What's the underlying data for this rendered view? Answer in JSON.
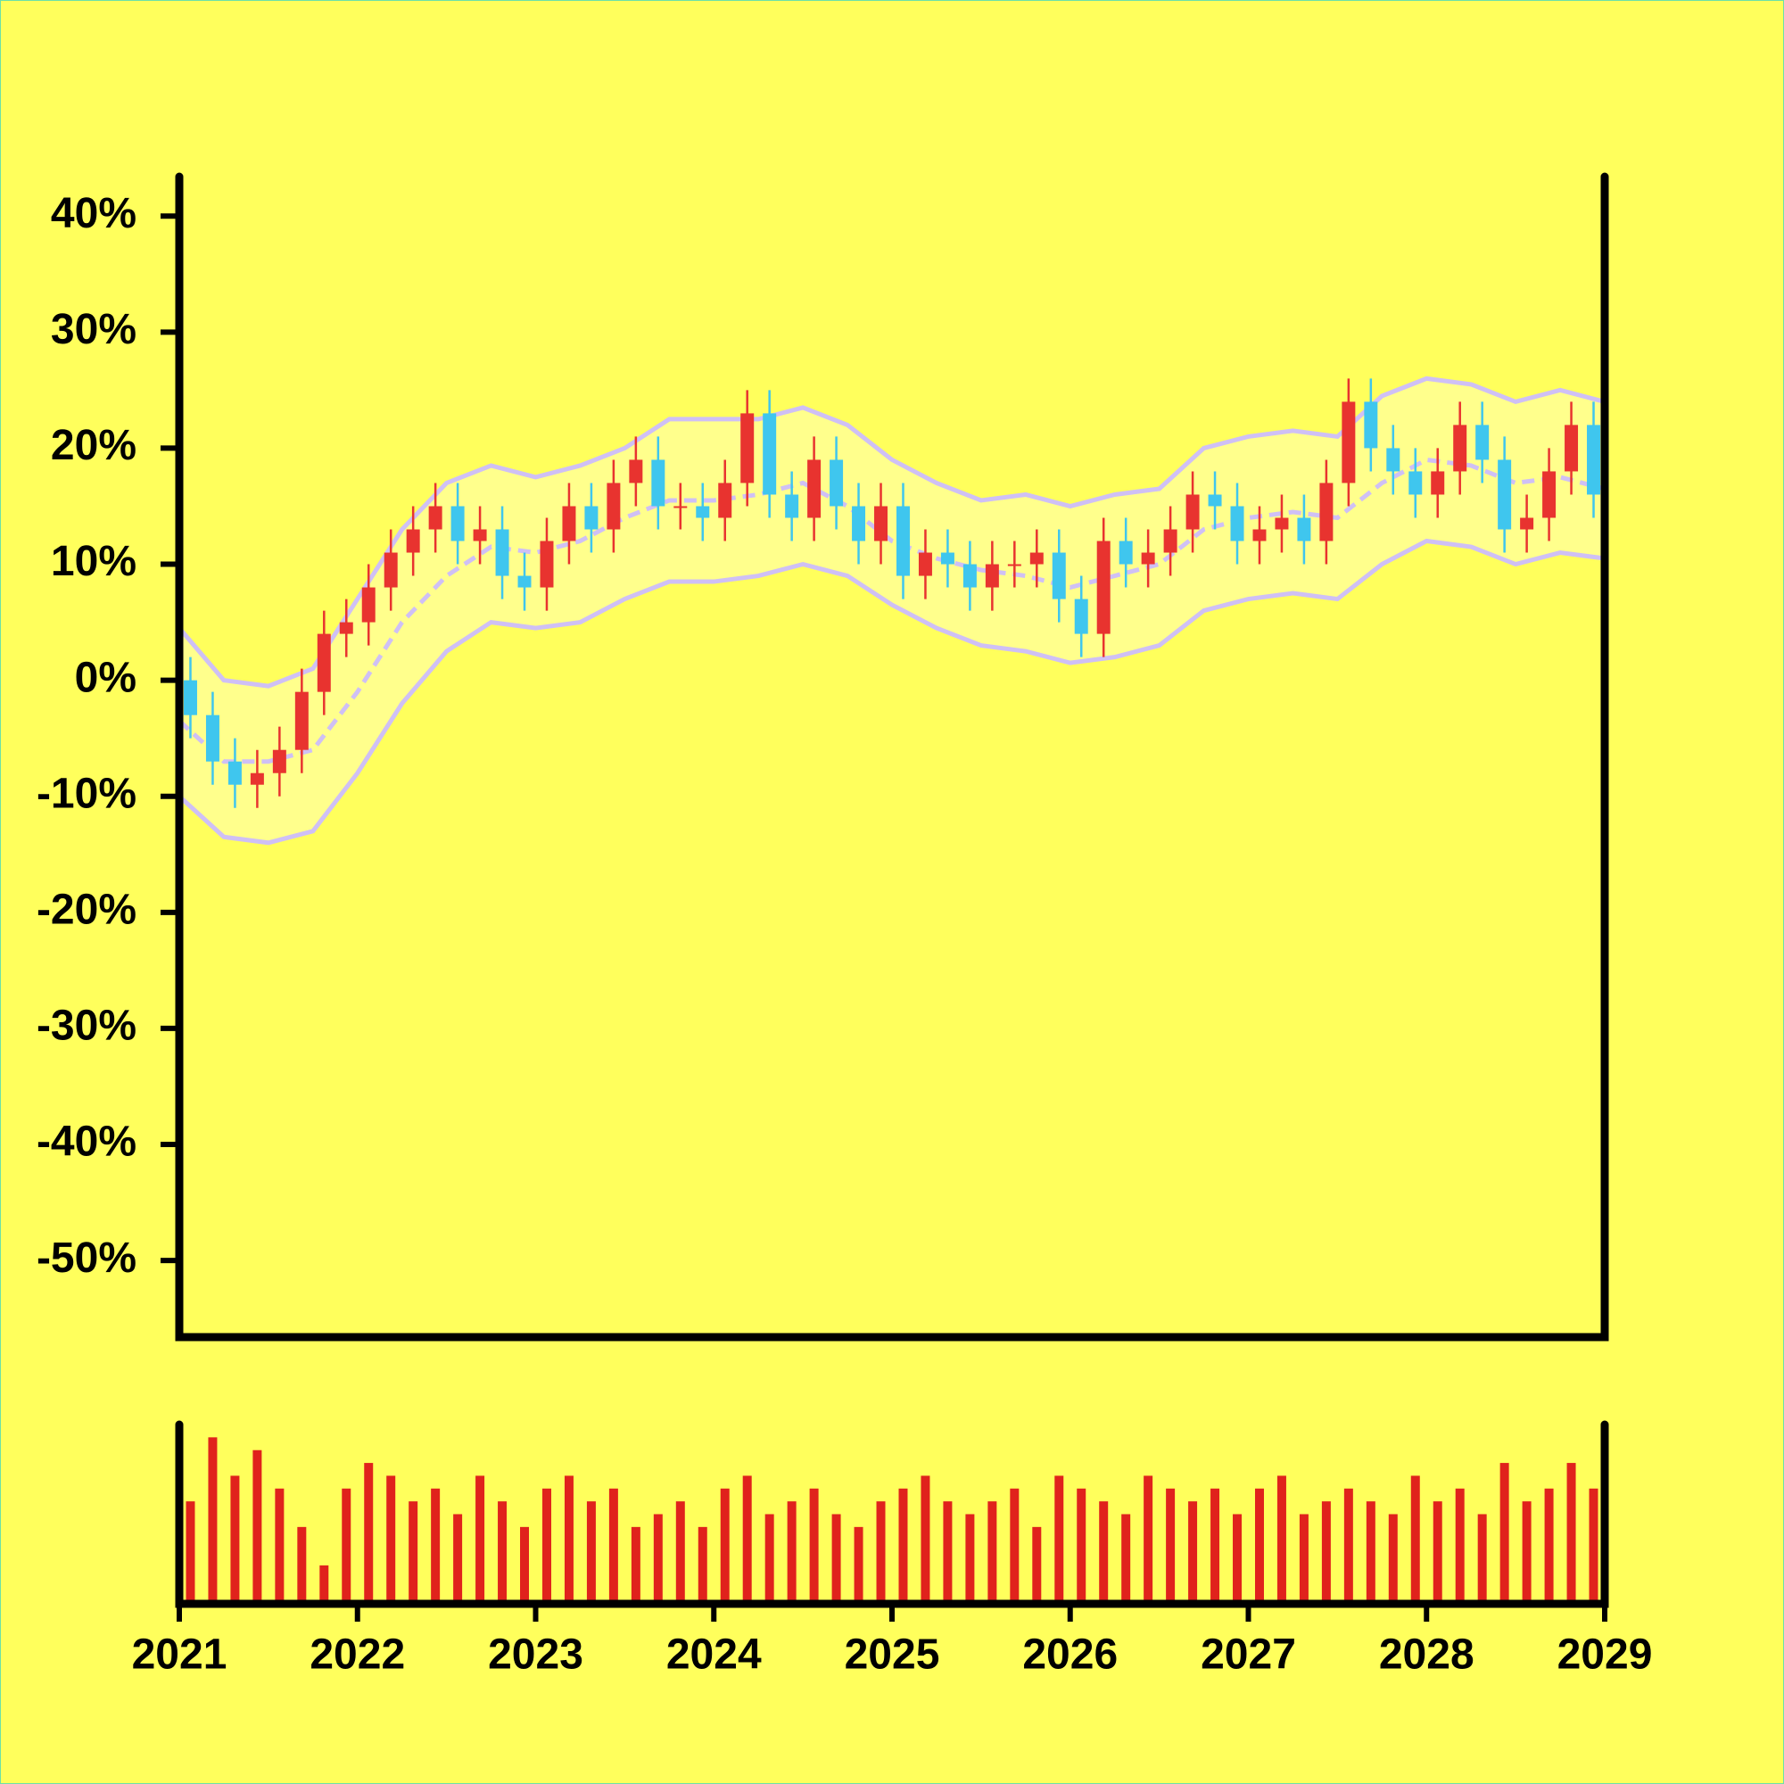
{
  "chart_data": {
    "type": "candlestick",
    "x": [
      2021.0625,
      2021.1875,
      2021.3125,
      2021.4375,
      2021.5625,
      2021.6875,
      2021.8125,
      2021.9375,
      2022.0625,
      2022.1875,
      2022.3125,
      2022.4375,
      2022.5625,
      2022.6875,
      2022.8125,
      2022.9375,
      2023.0625,
      2023.1875,
      2023.3125,
      2023.4375,
      2023.5625,
      2023.6875,
      2023.8125,
      2023.9375,
      2024.0625,
      2024.1875,
      2024.3125,
      2024.4375,
      2024.5625,
      2024.6875,
      2024.8125,
      2024.9375,
      2025.0625,
      2025.1875,
      2025.3125,
      2025.4375,
      2025.5625,
      2025.6875,
      2025.8125,
      2025.9375,
      2026.0625,
      2026.1875,
      2026.3125,
      2026.4375,
      2026.5625,
      2026.6875,
      2026.8125,
      2026.9375,
      2027.0625,
      2027.1875,
      2027.3125,
      2027.4375,
      2027.5625,
      2027.6875,
      2027.8125,
      2027.9375,
      2028.0625,
      2028.1875,
      2028.3125,
      2028.4375,
      2028.5625,
      2028.6875,
      2028.8125,
      2028.9375
    ],
    "open": [
      0,
      -3,
      -7,
      -9,
      -8,
      -6,
      -1,
      4,
      5,
      8,
      11,
      13,
      15,
      12,
      13,
      9,
      8,
      12,
      15,
      13,
      17,
      19,
      15,
      15,
      14,
      17,
      23,
      16,
      14,
      19,
      15,
      12,
      15,
      9,
      11,
      10,
      8,
      10,
      10,
      11,
      7,
      4,
      12,
      10,
      11,
      13,
      16,
      15,
      12,
      13,
      14,
      12,
      17,
      24,
      20,
      18,
      16,
      18,
      22,
      19,
      13,
      14,
      18,
      22
    ],
    "high": [
      2,
      -1,
      -5,
      -6,
      -4,
      1,
      6,
      7,
      10,
      13,
      15,
      17,
      17,
      15,
      15,
      11,
      14,
      17,
      17,
      19,
      21,
      21,
      17,
      17,
      19,
      25,
      25,
      18,
      21,
      21,
      17,
      17,
      17,
      13,
      13,
      12,
      12,
      12,
      13,
      13,
      9,
      14,
      14,
      13,
      15,
      18,
      18,
      17,
      15,
      16,
      16,
      19,
      26,
      26,
      22,
      20,
      20,
      24,
      24,
      21,
      16,
      20,
      24,
      24
    ],
    "low": [
      -5,
      -9,
      -11,
      -11,
      -10,
      -8,
      -3,
      2,
      3,
      6,
      9,
      11,
      10,
      10,
      7,
      6,
      6,
      10,
      11,
      11,
      15,
      13,
      13,
      12,
      12,
      15,
      14,
      12,
      12,
      13,
      10,
      10,
      7,
      7,
      8,
      6,
      6,
      8,
      8,
      5,
      2,
      2,
      8,
      8,
      9,
      11,
      13,
      10,
      10,
      11,
      10,
      10,
      15,
      18,
      16,
      14,
      14,
      16,
      17,
      11,
      11,
      12,
      16,
      14
    ],
    "close": [
      -3,
      -7,
      -9,
      -8,
      -6,
      -1,
      4,
      5,
      8,
      11,
      13,
      15,
      12,
      13,
      9,
      8,
      12,
      15,
      13,
      17,
      19,
      15,
      15,
      14,
      17,
      23,
      16,
      14,
      19,
      15,
      12,
      15,
      9,
      11,
      10,
      8,
      10,
      10,
      11,
      7,
      4,
      12,
      10,
      11,
      13,
      16,
      15,
      12,
      13,
      14,
      12,
      17,
      24,
      20,
      18,
      16,
      18,
      22,
      19,
      13,
      14,
      18,
      22,
      16
    ],
    "volume": [
      40,
      65,
      50,
      60,
      45,
      30,
      15,
      45,
      55,
      50,
      40,
      45,
      35,
      50,
      40,
      30,
      45,
      50,
      40,
      45,
      30,
      35,
      40,
      30,
      45,
      50,
      35,
      40,
      45,
      35,
      30,
      40,
      45,
      50,
      40,
      35,
      40,
      45,
      30,
      50,
      45,
      40,
      35,
      50,
      45,
      40,
      45,
      35,
      45,
      50,
      35,
      40,
      45,
      40,
      35,
      50,
      40,
      45,
      35,
      55,
      40,
      45,
      55,
      45
    ],
    "up_color": "#e8332f",
    "down_color": "#3fc6ee",
    "volume_color": "#e0221c",
    "bands": {
      "x": [
        2021,
        2021.25,
        2021.5,
        2021.75,
        2022,
        2022.25,
        2022.5,
        2022.75,
        2023,
        2023.25,
        2023.5,
        2023.75,
        2024,
        2024.25,
        2024.5,
        2024.75,
        2025,
        2025.25,
        2025.5,
        2025.75,
        2026,
        2026.25,
        2026.5,
        2026.75,
        2027,
        2027.25,
        2027.5,
        2027.75,
        2028,
        2028.25,
        2028.5,
        2028.75,
        2029
      ],
      "upper": [
        4.5,
        0,
        -0.5,
        1,
        7,
        13,
        17,
        18.5,
        17.5,
        18.5,
        20,
        22.5,
        22.5,
        22.5,
        23.5,
        22,
        19,
        17,
        15.5,
        16,
        15,
        16,
        16.5,
        20,
        21,
        21.5,
        21,
        24.5,
        26,
        25.5,
        24,
        25,
        24
      ],
      "middle": [
        -3.5,
        -7,
        -7,
        -6,
        -1,
        5,
        9,
        11.5,
        11,
        12,
        14,
        15.5,
        15.5,
        16,
        17,
        15,
        12,
        10.5,
        9.5,
        9,
        8,
        9,
        10,
        13,
        14,
        14.5,
        14,
        17,
        19,
        18.5,
        17,
        17.5,
        16.5
      ],
      "lower": [
        -10,
        -13.5,
        -14,
        -13,
        -8,
        -2,
        2.5,
        5,
        4.5,
        5,
        7,
        8.5,
        8.5,
        9,
        10,
        9,
        6.5,
        4.5,
        3,
        2.5,
        1.5,
        2,
        3,
        6,
        7,
        7.5,
        7,
        10,
        12,
        11.5,
        10,
        11,
        10.5
      ],
      "color": "#cfc0f5",
      "fill": "#ffff8c"
    },
    "xlim": [
      2021,
      2029
    ],
    "xticks": [
      2021,
      2022,
      2023,
      2024,
      2025,
      2026,
      2027,
      2028,
      2029
    ],
    "ylim": [
      -56.6,
      43.4
    ],
    "yticks": [
      {
        "value": 40,
        "label": "40%"
      },
      {
        "value": 30,
        "label": "30%"
      },
      {
        "value": 20,
        "label": "20%"
      },
      {
        "value": 10,
        "label": "10%"
      },
      {
        "value": 0,
        "label": "0%"
      },
      {
        "value": -10,
        "label": "-10%"
      },
      {
        "value": -20,
        "label": "-20%"
      },
      {
        "value": -30,
        "label": "-30%"
      },
      {
        "value": -40,
        "label": "-40%"
      },
      {
        "value": -50,
        "label": "-50%"
      }
    ],
    "volume_ylim": [
      0,
      70
    ]
  }
}
